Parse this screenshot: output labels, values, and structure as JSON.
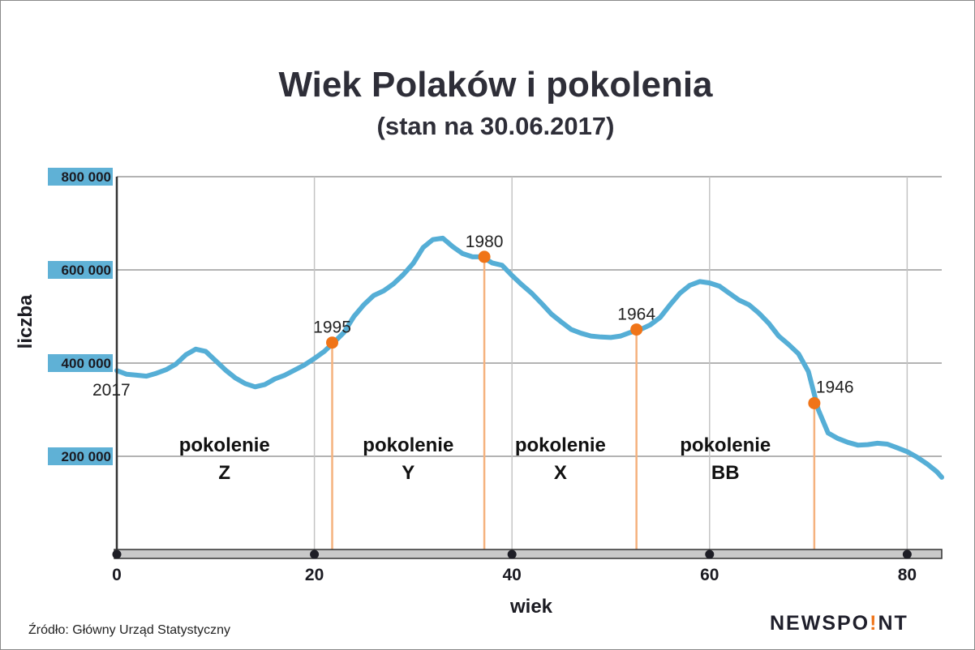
{
  "chart_data": {
    "type": "line",
    "title": "Wiek Polaków i pokolenia",
    "subtitle": "(stan na 30.06.2017)",
    "xlabel": "wiek",
    "ylabel": "liczba",
    "xlim": [
      0,
      83.5
    ],
    "ylim": [
      0,
      800000
    ],
    "xticks": [
      0,
      20,
      40,
      60,
      80
    ],
    "xtick_labels": [
      "0",
      "20",
      "40",
      "60",
      "80"
    ],
    "yticks": [
      200000,
      400000,
      600000,
      800000
    ],
    "ytick_labels": [
      "200 000",
      "400 000",
      "600 000",
      "800 000"
    ],
    "grid": true,
    "line_color": "#55aed6",
    "marker_color": "#f07418",
    "guide_color": "#f5b27e",
    "x": [
      0,
      1,
      2,
      3,
      4,
      5,
      6,
      7,
      8,
      9,
      10,
      11,
      12,
      13,
      14,
      15,
      16,
      17,
      18,
      19,
      20,
      21,
      22,
      23,
      24,
      25,
      26,
      27,
      28,
      29,
      30,
      31,
      32,
      33,
      34,
      35,
      36,
      37,
      38,
      39,
      40,
      41,
      42,
      43,
      44,
      45,
      46,
      47,
      48,
      49,
      50,
      51,
      52,
      53,
      54,
      55,
      56,
      57,
      58,
      59,
      60,
      61,
      62,
      63,
      64,
      65,
      66,
      67,
      68,
      69,
      70,
      71,
      72,
      73,
      74,
      75,
      76,
      77,
      78,
      79,
      80,
      81,
      82,
      83,
      83.5
    ],
    "values": [
      384000,
      376000,
      374000,
      372000,
      378000,
      386000,
      398000,
      418000,
      430000,
      425000,
      405000,
      385000,
      368000,
      356000,
      349000,
      354000,
      366000,
      374000,
      385000,
      396000,
      410000,
      425000,
      445000,
      466000,
      500000,
      525000,
      545000,
      555000,
      570000,
      590000,
      614000,
      648000,
      665000,
      668000,
      650000,
      635000,
      628000,
      628000,
      615000,
      610000,
      588000,
      568000,
      550000,
      528000,
      505000,
      488000,
      472000,
      464000,
      458000,
      456000,
      455000,
      458000,
      466000,
      472000,
      482000,
      498000,
      525000,
      550000,
      567000,
      575000,
      572000,
      565000,
      550000,
      535000,
      525000,
      507000,
      485000,
      458000,
      440000,
      420000,
      382000,
      300000,
      250000,
      238000,
      230000,
      224000,
      225000,
      228000,
      226000,
      218000,
      210000,
      198000,
      184000,
      167000,
      155000
    ],
    "points": [
      {
        "label": "2017",
        "x": 0,
        "y": 384000
      },
      {
        "label": "1995",
        "x": 21.8,
        "y": 444000
      },
      {
        "label": "1980",
        "x": 37.2,
        "y": 628000
      },
      {
        "label": "1964",
        "x": 52.6,
        "y": 472000
      },
      {
        "label": "1946",
        "x": 70.6,
        "y": 314000
      }
    ],
    "generations": [
      {
        "line1": "pokolenie",
        "line2": "Z",
        "x_center": 10.9
      },
      {
        "line1": "pokolenie",
        "line2": "Y",
        "x_center": 29.5
      },
      {
        "line1": "pokolenie",
        "line2": "X",
        "x_center": 44.9
      },
      {
        "line1": "pokolenie",
        "line2": "BB",
        "x_center": 61.6
      }
    ]
  },
  "footer": {
    "source": "Źródło: Główny Urząd Statystyczny",
    "brand_left": "NEWSPO",
    "brand_dot": "!",
    "brand_right": "NT",
    "brand_accent": "#f07418"
  }
}
